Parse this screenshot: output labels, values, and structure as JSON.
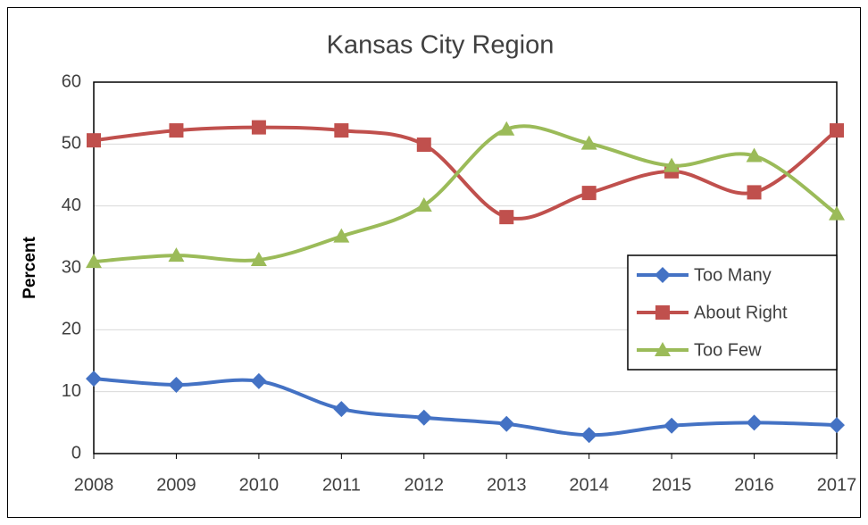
{
  "chart_data": {
    "type": "line",
    "title": "Kansas City Region",
    "ylabel": "Percent",
    "categories": [
      "2008",
      "2009",
      "2010",
      "2011",
      "2012",
      "2013",
      "2014",
      "2015",
      "2016",
      "2017"
    ],
    "series": [
      {
        "name": "Too Many",
        "color": "#4472c4",
        "marker": "diamond",
        "values": [
          12.1,
          11.1,
          11.7,
          7.2,
          5.8,
          4.8,
          3.0,
          4.5,
          5.0,
          4.6
        ]
      },
      {
        "name": "About Right",
        "color": "#c0504d",
        "marker": "square",
        "values": [
          50.6,
          52.2,
          52.7,
          52.2,
          49.9,
          38.2,
          42.1,
          45.6,
          42.2,
          52.2
        ]
      },
      {
        "name": "Too Few",
        "color": "#9bbb59",
        "marker": "triangle",
        "values": [
          31.0,
          32.0,
          31.3,
          35.1,
          40.1,
          52.4,
          50.1,
          46.5,
          48.1,
          38.7
        ]
      }
    ],
    "ylim": [
      0,
      60
    ],
    "yticks": [
      0,
      10,
      20,
      30,
      40,
      50,
      60
    ],
    "grid": true,
    "smooth": true,
    "legend": "right"
  }
}
